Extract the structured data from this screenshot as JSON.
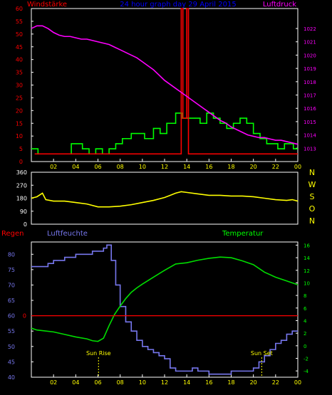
{
  "chart_data": [
    {
      "type": "line",
      "title": "24 hour graph day  29 April 2015",
      "left_axis_label": "Windstärke",
      "right_axis_label": "Luftdruck",
      "x_ticks": [
        "02",
        "04",
        "06",
        "08",
        "10",
        "12",
        "14",
        "16",
        "18",
        "20",
        "22",
        "00"
      ],
      "x_range": [
        0,
        24
      ],
      "left_range": [
        0,
        60
      ],
      "left_ticks": [
        0,
        5,
        10,
        15,
        20,
        25,
        30,
        35,
        40,
        45,
        50,
        55,
        60
      ],
      "right_range": [
        1012,
        1023.5
      ],
      "right_ticks": [
        1013,
        1014,
        1015,
        1016,
        1017,
        1018,
        1019,
        1020,
        1021,
        1022
      ],
      "colors": {
        "wind": "#00ff00",
        "gust": "#ff0000",
        "pressure": "#ff00ff",
        "axis_left": "#ff0000",
        "axis_right": "#ff00ff",
        "title": "#0000ff"
      },
      "series": [
        {
          "key": "wind",
          "axis": "left",
          "x": [
            0,
            0.6,
            2.6,
            3.6,
            4.6,
            5.2,
            5.8,
            6.4,
            7.0,
            7.6,
            8.2,
            9.0,
            10.2,
            11.0,
            11.6,
            12.2,
            13.0,
            13.6,
            14.6,
            15.2,
            15.8,
            16.4,
            17.0,
            17.6,
            18.2,
            18.8,
            19.4,
            20.0,
            20.6,
            21.2,
            22.2,
            22.8,
            23.6,
            24
          ],
          "y": [
            5,
            3,
            3,
            7,
            5,
            3,
            5,
            3,
            5,
            7,
            9,
            11,
            9,
            13,
            11,
            15,
            19,
            17,
            17,
            15,
            19,
            17,
            15,
            13,
            15,
            17,
            15,
            11,
            9,
            7,
            5,
            7,
            5,
            5
          ]
        },
        {
          "key": "gust",
          "axis": "left",
          "x": [
            0.3,
            0.3,
            13.5,
            13.5,
            13.65,
            13.65,
            14.0,
            14.0,
            14.15,
            14.15,
            24
          ],
          "y": [
            3,
            3,
            3,
            60,
            60,
            17,
            17,
            60,
            60,
            3,
            3
          ]
        },
        {
          "key": "pressure",
          "axis": "right",
          "x": [
            0,
            0.5,
            1,
            1.5,
            2,
            2.5,
            3,
            3.5,
            4,
            4.5,
            5,
            5.5,
            6,
            6.5,
            7,
            7.5,
            8,
            8.5,
            9,
            9.5,
            10,
            10.5,
            11,
            11.5,
            12,
            12.5,
            13,
            13.5,
            14,
            14.5,
            15,
            15.5,
            16,
            16.5,
            17,
            17.5,
            18,
            18.5,
            19,
            19.5,
            20,
            20.5,
            21,
            21.5,
            22,
            22.5,
            23,
            23.5,
            24
          ],
          "y": [
            1022.0,
            1022.2,
            1022.2,
            1022.0,
            1021.7,
            1021.5,
            1021.4,
            1021.4,
            1021.3,
            1021.2,
            1021.2,
            1021.1,
            1021.0,
            1020.9,
            1020.8,
            1020.6,
            1020.4,
            1020.2,
            1020.0,
            1019.8,
            1019.5,
            1019.2,
            1018.9,
            1018.5,
            1018.1,
            1017.8,
            1017.5,
            1017.2,
            1016.9,
            1016.6,
            1016.3,
            1016.0,
            1015.7,
            1015.4,
            1015.1,
            1014.9,
            1014.6,
            1014.4,
            1014.2,
            1014.0,
            1013.9,
            1013.8,
            1013.8,
            1013.7,
            1013.6,
            1013.6,
            1013.5,
            1013.4,
            1013.3
          ]
        }
      ]
    },
    {
      "type": "line",
      "title": "",
      "x_ticks": [
        "02",
        "04",
        "06",
        "08",
        "10",
        "12",
        "14",
        "16",
        "18",
        "20",
        "22",
        "00"
      ],
      "x_range": [
        0,
        24
      ],
      "y_range": [
        0,
        360
      ],
      "y_ticks": [
        0,
        90,
        180,
        270,
        360
      ],
      "right_letters": [
        "N",
        "W",
        "S",
        "O",
        "N"
      ],
      "colors": {
        "direction": "#ffff00",
        "axis": "#ffffff",
        "letters": "#ffff00"
      },
      "series": [
        {
          "key": "direction",
          "x": [
            0,
            0.5,
            1,
            1.3,
            2,
            3,
            4,
            5,
            6,
            7,
            8,
            9,
            10,
            11,
            12,
            12.5,
            13,
            13.5,
            14,
            15,
            16,
            17,
            18,
            19,
            20,
            21,
            22,
            23,
            23.5,
            24
          ],
          "y": [
            180,
            190,
            215,
            170,
            160,
            160,
            150,
            140,
            120,
            120,
            125,
            135,
            150,
            165,
            185,
            200,
            215,
            225,
            220,
            210,
            200,
            200,
            195,
            195,
            190,
            180,
            170,
            165,
            170,
            160
          ]
        }
      ]
    },
    {
      "type": "line",
      "title": "",
      "labels": {
        "rain": "Regen",
        "humidity": "Luftfeuchte",
        "temperature": "Temperatur",
        "sunrise": "Sun Rise",
        "sunset": "Sun Set"
      },
      "x_ticks": [
        "02",
        "04",
        "06",
        "08",
        "10",
        "12",
        "14",
        "16",
        "18",
        "20",
        "22",
        "00"
      ],
      "x_range": [
        0,
        24
      ],
      "humidity_range": [
        40,
        84
      ],
      "humidity_ticks": [
        40,
        45,
        50,
        55,
        60,
        65,
        70,
        75,
        80
      ],
      "temperature_range": [
        -5,
        16.5
      ],
      "temperature_ticks": [
        -4,
        -2,
        0,
        2,
        4,
        6,
        8,
        10,
        12,
        14,
        16
      ],
      "rain_range": [
        0,
        1
      ],
      "rain_ticks": [
        0
      ],
      "sunrise_hour": 6.05,
      "sunset_hour": 20.75,
      "colors": {
        "humidity": "#7777ee",
        "temperature": "#00dd00",
        "rain": "#ff0000",
        "sun": "#ffff00",
        "axis_rain": "#ff0000",
        "axis_humidity": "#7777ee",
        "axis_temperature": "#00ff00"
      },
      "series": [
        {
          "key": "humidity",
          "x": [
            0,
            1,
            1.5,
            2,
            3,
            4,
            5,
            5.5,
            6,
            6.5,
            6.8,
            7.2,
            7.6,
            8.0,
            8.5,
            9,
            9.5,
            10,
            10.5,
            11,
            11.5,
            12,
            12.5,
            13,
            14,
            14.5,
            15,
            16,
            17,
            18,
            19,
            20,
            20.5,
            21,
            21.5,
            22,
            22.5,
            23,
            23.5,
            24
          ],
          "y": [
            76,
            76,
            77,
            78,
            79,
            80,
            80,
            81,
            81,
            82,
            83,
            78,
            70,
            63,
            58,
            55,
            52,
            50,
            49,
            48,
            47,
            46,
            43,
            42,
            42,
            43,
            42,
            41,
            41,
            42,
            42,
            43,
            45,
            47,
            49,
            51,
            52,
            54,
            55,
            55
          ]
        },
        {
          "key": "temperature",
          "x": [
            0,
            0.5,
            1,
            2,
            3,
            4,
            5,
            5.5,
            6,
            6.5,
            7,
            7.5,
            8,
            8.5,
            9,
            9.5,
            10,
            11,
            12,
            13,
            14,
            15,
            16,
            17,
            18,
            19,
            20,
            21,
            22,
            23,
            24
          ],
          "y": [
            2.8,
            2.5,
            2.4,
            2.2,
            1.8,
            1.4,
            1.1,
            0.8,
            0.7,
            1.2,
            3.2,
            5.0,
            6.3,
            7.5,
            8.5,
            9.2,
            9.8,
            10.9,
            12.0,
            13.0,
            13.2,
            13.6,
            13.9,
            14.1,
            14.0,
            13.5,
            12.9,
            11.7,
            10.9,
            10.3,
            9.7
          ]
        },
        {
          "key": "rain",
          "x": [
            0,
            24
          ],
          "y": [
            0,
            0
          ]
        }
      ]
    }
  ]
}
